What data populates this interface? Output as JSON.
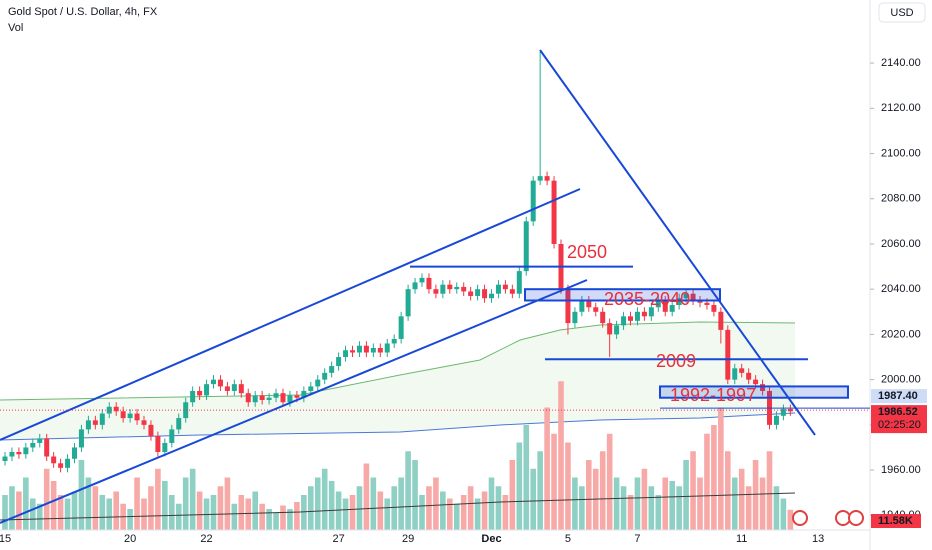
{
  "chart_data": {
    "type": "candlestick",
    "title": "Gold Spot / U.S. Dollar, 4h, FX",
    "volume_title": "Vol",
    "currency": "USD",
    "categories": [
      "15",
      null,
      null,
      null,
      null,
      null,
      null,
      null,
      null,
      null,
      null,
      null,
      null,
      null,
      null,
      null,
      null,
      null,
      "20",
      null,
      null,
      null,
      null,
      null,
      null,
      null,
      null,
      null,
      null,
      "22",
      null,
      null,
      null,
      null,
      null,
      null,
      null,
      null,
      null,
      null,
      null,
      null,
      null,
      null,
      null,
      null,
      null,
      null,
      "27",
      null,
      null,
      null,
      null,
      null,
      null,
      null,
      null,
      null,
      "29",
      null,
      null,
      null,
      null,
      null,
      null,
      null,
      null,
      null,
      null,
      null,
      "Dec",
      null,
      null,
      null,
      null,
      null,
      null,
      null,
      null,
      null,
      null,
      "5",
      null,
      null,
      null,
      null,
      null,
      null,
      null,
      null,
      null,
      "7",
      null,
      null,
      null,
      null,
      null,
      null,
      null,
      null,
      null,
      null,
      null,
      null,
      null,
      null,
      "11",
      null,
      null,
      null,
      null,
      null,
      null,
      null,
      null,
      null,
      null,
      "13"
    ],
    "open": [
      1964,
      1966,
      1968,
      1967,
      1970,
      1972,
      1974,
      1966,
      1963,
      1961,
      1965,
      1970,
      1978,
      1982,
      1980,
      1985,
      1988,
      1986,
      1983,
      1985,
      1982,
      1980,
      1975,
      1968,
      1972,
      1978,
      1983,
      1990,
      1995,
      1993,
      1998,
      2000,
      1997,
      1995,
      1998,
      1994,
      1990,
      1993,
      1991,
      1992,
      1994,
      1990,
      1993,
      1992,
      1995,
      1997,
      2000,
      2003,
      2006,
      2010,
      2013,
      2012,
      2015,
      2012,
      2014,
      2012,
      2016,
      2018,
      2028,
      2040,
      2043,
      2045,
      2040,
      2038,
      2042,
      2040,
      2041,
      2039,
      2037,
      2040,
      2036,
      2038,
      2042,
      2040,
      2038,
      2048,
      2070,
      2088,
      2090,
      2088,
      2060,
      2040,
      2025,
      2030,
      2035,
      2032,
      2030,
      2025,
      2020,
      2024,
      2028,
      2026,
      2030,
      2028,
      2032,
      2035,
      2030,
      2033,
      2036,
      2038,
      2035,
      2034,
      2033,
      2030,
      2022,
      2000,
      2005,
      2003,
      2000,
      1998,
      1995,
      1980,
      1984,
      1987,
      null,
      null,
      null,
      null
    ],
    "high": [
      1968,
      1970,
      1970,
      1972,
      1974,
      1976,
      1976,
      1968,
      1965,
      1967,
      1972,
      1980,
      1984,
      1984,
      1987,
      1990,
      1990,
      1988,
      1987,
      1987,
      1984,
      1982,
      1977,
      1974,
      1980,
      1985,
      1992,
      1997,
      1997,
      2000,
      2002,
      2002,
      1999,
      2000,
      2000,
      1996,
      1995,
      1995,
      1994,
      1996,
      1996,
      1995,
      1995,
      1997,
      1999,
      2002,
      2005,
      2008,
      2012,
      2015,
      2015,
      2017,
      2017,
      2016,
      2016,
      2018,
      2020,
      2030,
      2042,
      2045,
      2047,
      2047,
      2042,
      2044,
      2044,
      2043,
      2043,
      2041,
      2042,
      2042,
      2040,
      2044,
      2044,
      2042,
      2050,
      2072,
      2090,
      2145,
      2092,
      2090,
      2062,
      2042,
      2032,
      2037,
      2037,
      2034,
      2032,
      2027,
      2026,
      2030,
      2030,
      2032,
      2032,
      2034,
      2037,
      2037,
      2035,
      2038,
      2040,
      2040,
      2037,
      2036,
      2035,
      2032,
      2024,
      2007,
      2007,
      2005,
      2002,
      2000,
      1997,
      1986,
      1989,
      1989,
      null,
      null,
      null,
      null
    ],
    "low": [
      1962,
      1964,
      1965,
      1965,
      1968,
      1970,
      1964,
      1961,
      1959,
      1959,
      1963,
      1968,
      1976,
      1978,
      1978,
      1983,
      1984,
      1981,
      1981,
      1980,
      1978,
      1973,
      1966,
      1966,
      1970,
      1976,
      1981,
      1988,
      1991,
      1991,
      1996,
      1995,
      1993,
      1993,
      1992,
      1988,
      1988,
      1989,
      1989,
      1990,
      1988,
      1988,
      1990,
      1990,
      1993,
      1995,
      1998,
      2001,
      2004,
      2008,
      2010,
      2010,
      2010,
      2010,
      2010,
      2010,
      2014,
      2016,
      2026,
      2038,
      2041,
      2038,
      2036,
      2036,
      2038,
      2038,
      2037,
      2035,
      2035,
      2034,
      2034,
      2036,
      2038,
      2036,
      2036,
      2046,
      2068,
      2086,
      2086,
      2058,
      2038,
      2020,
      2023,
      2028,
      2030,
      2028,
      2023,
      2010,
      2018,
      2022,
      2024,
      2024,
      2026,
      2026,
      2030,
      2028,
      2028,
      2031,
      2034,
      2033,
      2032,
      2031,
      2028,
      2016,
      1998,
      1998,
      2001,
      1998,
      1996,
      1993,
      1978,
      1978,
      1982,
      1984,
      null,
      null,
      null,
      null
    ],
    "close": [
      1966,
      1968,
      1967,
      1970,
      1972,
      1974,
      1966,
      1963,
      1961,
      1965,
      1970,
      1978,
      1982,
      1980,
      1985,
      1988,
      1986,
      1983,
      1985,
      1982,
      1980,
      1975,
      1968,
      1972,
      1978,
      1983,
      1990,
      1995,
      1993,
      1998,
      2000,
      1997,
      1995,
      1998,
      1994,
      1990,
      1993,
      1991,
      1992,
      1994,
      1990,
      1993,
      1992,
      1995,
      1997,
      2000,
      2003,
      2006,
      2010,
      2013,
      2012,
      2015,
      2012,
      2014,
      2012,
      2016,
      2018,
      2028,
      2040,
      2043,
      2045,
      2040,
      2038,
      2042,
      2040,
      2041,
      2039,
      2037,
      2040,
      2036,
      2038,
      2042,
      2040,
      2038,
      2048,
      2070,
      2088,
      2090,
      2088,
      2060,
      2040,
      2025,
      2030,
      2035,
      2032,
      2030,
      2025,
      2020,
      2024,
      2028,
      2026,
      2030,
      2028,
      2032,
      2035,
      2030,
      2033,
      2036,
      2038,
      2035,
      2034,
      2033,
      2030,
      2022,
      2000,
      2005,
      2003,
      2000,
      1998,
      1995,
      1980,
      1984,
      1987,
      1986,
      null,
      null,
      null,
      null
    ],
    "volume": [
      20,
      25,
      22,
      30,
      18,
      15,
      35,
      28,
      20,
      18,
      22,
      40,
      30,
      25,
      20,
      18,
      22,
      15,
      12,
      30,
      18,
      25,
      35,
      28,
      20,
      15,
      30,
      35,
      22,
      18,
      20,
      25,
      30,
      15,
      20,
      18,
      22,
      15,
      12,
      10,
      14,
      12,
      16,
      20,
      25,
      30,
      35,
      28,
      22,
      18,
      20,
      25,
      38,
      30,
      22,
      18,
      25,
      30,
      45,
      40,
      20,
      25,
      30,
      22,
      18,
      15,
      20,
      25,
      18,
      22,
      30,
      25,
      20,
      40,
      50,
      60,
      35,
      45,
      70,
      55,
      85,
      50,
      30,
      25,
      40,
      35,
      45,
      55,
      30,
      25,
      20,
      30,
      35,
      25,
      20,
      30,
      28,
      25,
      40,
      45,
      30,
      55,
      60,
      70,
      45,
      30,
      35,
      25,
      40,
      30,
      45,
      25,
      18,
      11.58,
      null,
      null,
      null,
      null
    ],
    "last_volume_label": "11.58K",
    "up_color": "#22ab94",
    "down_color": "#f23645",
    "up_volume_color": "#8fd0c4",
    "down_volume_color": "#f7a9a7",
    "annotation_color": "#1848d8",
    "ylim": [
      1933.5,
      2167.9
    ],
    "yticks": [
      {
        "value": 1940,
        "label": "1940.00"
      },
      {
        "value": 1960,
        "label": "1960.00"
      },
      {
        "value": 1980,
        "label": "1980.00"
      },
      {
        "value": 2000,
        "label": "2000.00"
      },
      {
        "value": 2020,
        "label": "2020.00"
      },
      {
        "value": 2040,
        "label": "2040.00"
      },
      {
        "value": 2060,
        "label": "2060.00"
      },
      {
        "value": 2080,
        "label": "2080.00"
      },
      {
        "value": 2100,
        "label": "2100.00"
      },
      {
        "value": 2120,
        "label": "2120.00"
      },
      {
        "value": 2140,
        "label": "2140.00"
      }
    ],
    "levels": [
      {
        "label": "2050",
        "value": 2050
      },
      {
        "label": "2009",
        "value": 2009
      }
    ],
    "zones": [
      {
        "label": "2035-2040",
        "low": 2035,
        "high": 2040
      },
      {
        "label": "1992-1997",
        "low": 1992,
        "high": 1997
      }
    ],
    "marked_price": {
      "value": 1987.4,
      "label": "1987.40"
    },
    "last_price": 1986.52,
    "countdown": "02:25:20"
  }
}
